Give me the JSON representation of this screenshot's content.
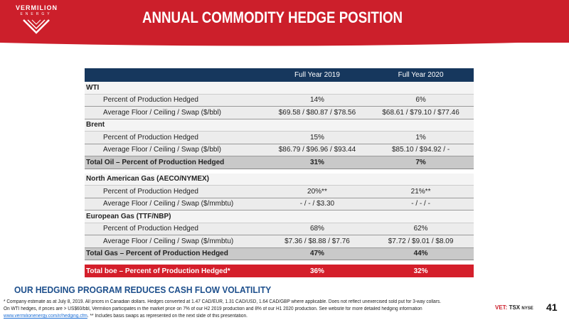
{
  "brand": {
    "name": "VERMILION",
    "sub": "ENERGY"
  },
  "title": "ANNUAL COMMODITY HEDGE POSITION",
  "table": {
    "headers": [
      "",
      "Full Year 2019",
      "Full Year 2020"
    ],
    "rows": [
      {
        "type": "section",
        "label": "WTI",
        "v1": "",
        "v2": ""
      },
      {
        "type": "sub",
        "label": "Percent of Production Hedged",
        "v1": "14%",
        "v2": "6%"
      },
      {
        "type": "sub",
        "label": "Average Floor / Ceiling / Swap ($/bbl)",
        "v1": "$69.58 / $80.87 / $78.56",
        "v2": "$68.61 / $79.10 / $77.46"
      },
      {
        "type": "section",
        "label": "Brent",
        "v1": "",
        "v2": ""
      },
      {
        "type": "sub",
        "label": "Percent of Production Hedged",
        "v1": "15%",
        "v2": "1%"
      },
      {
        "type": "sub",
        "label": "Average Floor / Ceiling / Swap ($/bbl)",
        "v1": "$86.79 / $96.96 / $93.44",
        "v2": "$85.10 / $94.92 / -"
      },
      {
        "type": "total",
        "label": "Total Oil – Percent of Production Hedged",
        "v1": "31%",
        "v2": "7%"
      },
      {
        "type": "section",
        "label": "North American Gas (AECO/NYMEX)",
        "v1": "",
        "v2": ""
      },
      {
        "type": "sub",
        "label": "Percent of Production Hedged",
        "v1": "20%**",
        "v2": "21%**"
      },
      {
        "type": "sub",
        "label": "Average Floor / Ceiling / Swap ($/mmbtu)",
        "v1": "- / - / $3.30",
        "v2": "- / - / -"
      },
      {
        "type": "section",
        "label": "European Gas (TTF/NBP)",
        "v1": "",
        "v2": ""
      },
      {
        "type": "sub",
        "label": "Percent of Production Hedged",
        "v1": "68%",
        "v2": "62%"
      },
      {
        "type": "sub",
        "label": "Average Floor / Ceiling / Swap ($/mmbtu)",
        "v1": "$7.36 / $8.88 / $7.76",
        "v2": "$7.72 / $9.01 / $8.09"
      },
      {
        "type": "total",
        "label": "Total Gas – Percent of Production Hedged",
        "v1": "47%",
        "v2": "44%"
      },
      {
        "type": "boe",
        "label": "Total boe – Percent of Production Hedged*",
        "v1": "36%",
        "v2": "32%"
      }
    ]
  },
  "tagline": "OUR HEDGING PROGRAM REDUCES CASH FLOW VOLATILITY",
  "footnotes": {
    "line1": "* Company estimate as at July 8, 2019. All prices in Canadian dollars. Hedges converted at 1.47 CAD/EUR, 1.31 CAD/USD, 1.64 CAD/GBP where applicable.  Does not reflect unexercised sold put for 3-way collars.",
    "line2": "On WTI hedges, if prices are > US$60/bbl, Vermilion participates in the market price on 7% of our H2 2019 production and 8% of our H1 2020 production.  See website for more detailed hedging information",
    "link": "www.vermilionenergy.com/ir/hedging.cfm",
    "line3": ". ** Includes basis swaps as represented on the next slide of this presentation."
  },
  "ticker": {
    "vet": "VET:",
    "tsx": "TSX",
    "nyse": "NYSE"
  },
  "page_number": "41",
  "colors": {
    "header_red": "#cc1f2b",
    "table_header_navy": "#16375d",
    "tagline_blue": "#1d4f8c"
  }
}
